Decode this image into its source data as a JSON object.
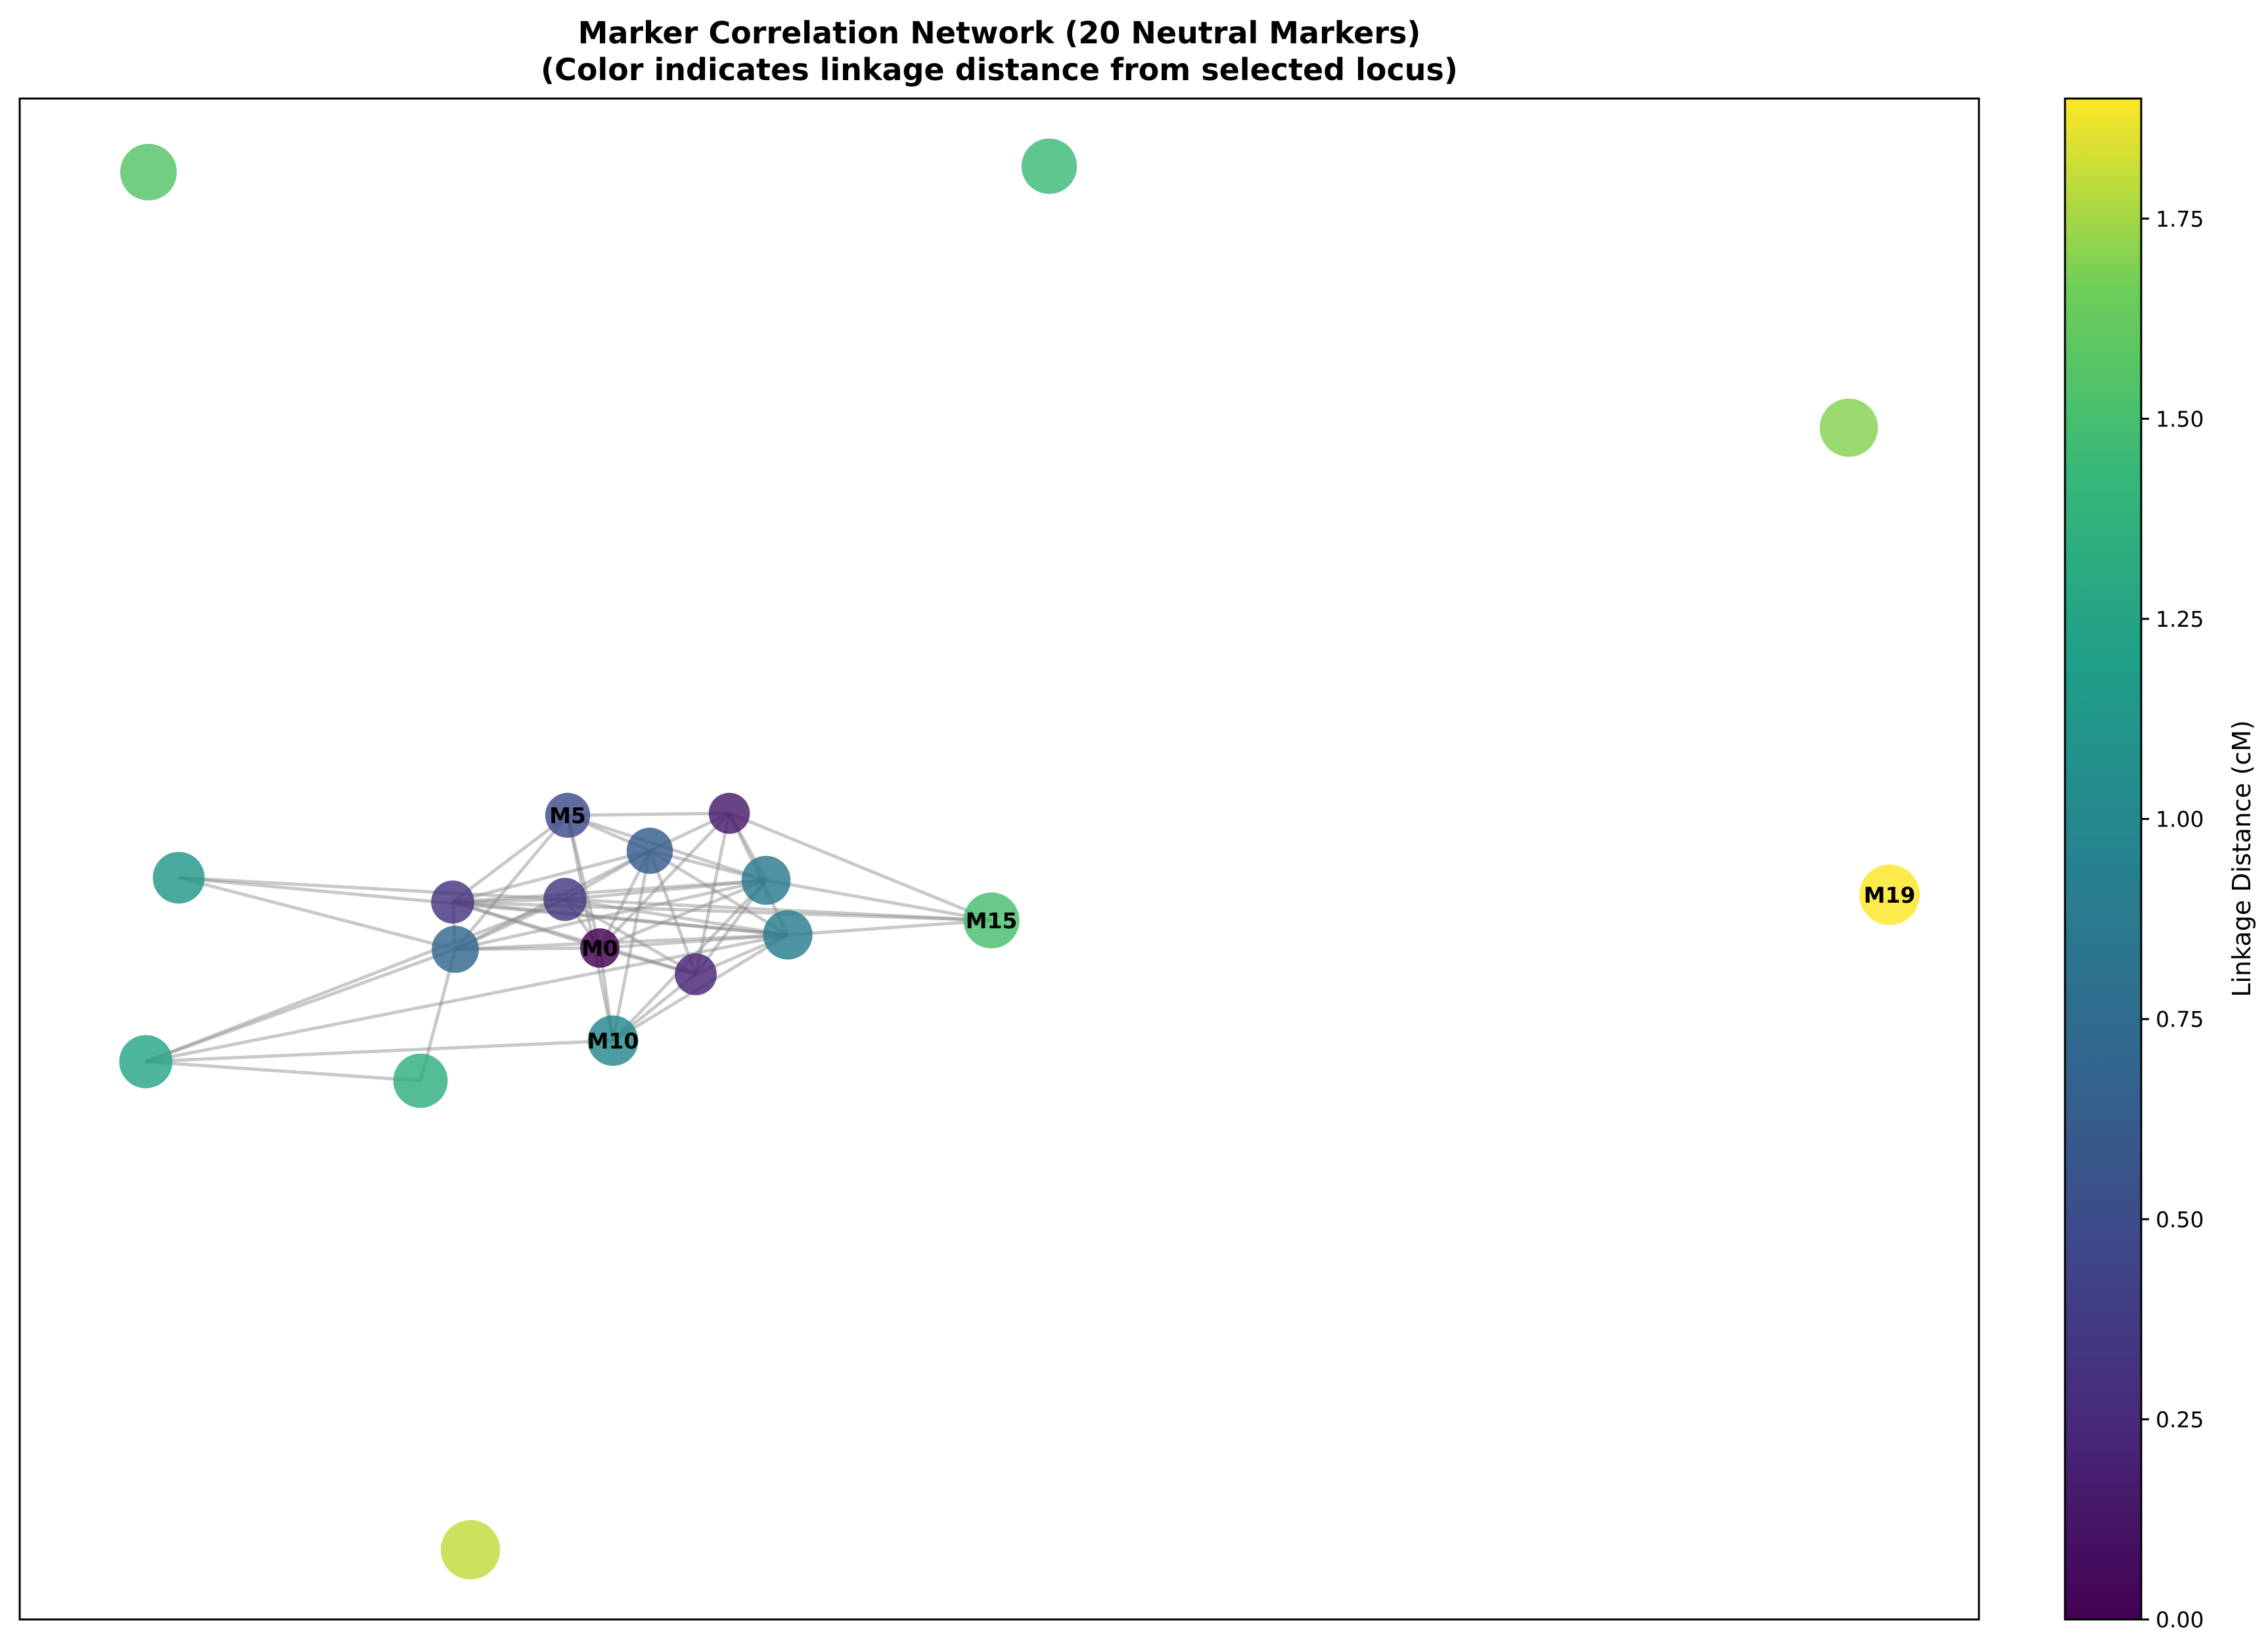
{
  "chart_data": {
    "type": "network",
    "title_line1": "Marker Correlation Network (20 Neutral Markers)",
    "title_line2": "(Color indicates linkage distance from selected locus)",
    "colorbar": {
      "label": "Linkage Distance (cM)",
      "range": [
        0,
        1.9
      ],
      "ticks": [
        "0.00",
        "0.25",
        "0.50",
        "0.75",
        "1.00",
        "1.25",
        "1.50",
        "1.75"
      ],
      "colormap": "viridis"
    },
    "nodes": [
      {
        "id": "M0",
        "label": "M0",
        "distance": 0.0
      },
      {
        "id": "n1",
        "label": "",
        "distance": 0.15
      },
      {
        "id": "n2",
        "label": "",
        "distance": 0.22
      },
      {
        "id": "n3",
        "label": "",
        "distance": 0.33
      },
      {
        "id": "n4",
        "label": "",
        "distance": 0.35
      },
      {
        "id": "M5",
        "label": "M5",
        "distance": 0.5
      },
      {
        "id": "n6",
        "label": "",
        "distance": 0.62
      },
      {
        "id": "n7",
        "label": "",
        "distance": 0.7
      },
      {
        "id": "n8",
        "label": "",
        "distance": 0.87
      },
      {
        "id": "n9",
        "label": "",
        "distance": 0.9
      },
      {
        "id": "M10",
        "label": "M10",
        "distance": 1.0
      },
      {
        "id": "n11",
        "label": "",
        "distance": 1.12
      },
      {
        "id": "n12",
        "label": "",
        "distance": 1.25
      },
      {
        "id": "n13",
        "label": "",
        "distance": 1.35
      },
      {
        "id": "n14",
        "label": "",
        "distance": 1.45
      },
      {
        "id": "M15",
        "label": "M15",
        "distance": 1.5
      },
      {
        "id": "n16",
        "label": "",
        "distance": 1.55
      },
      {
        "id": "n17",
        "label": "",
        "distance": 1.7
      },
      {
        "id": "n18",
        "label": "",
        "distance": 1.8
      },
      {
        "id": "M19",
        "label": "M19",
        "distance": 1.9
      }
    ],
    "edges": [
      [
        "M0",
        "n1"
      ],
      [
        "M0",
        "n2"
      ],
      [
        "M0",
        "n3"
      ],
      [
        "M0",
        "n4"
      ],
      [
        "M0",
        "M5"
      ],
      [
        "M0",
        "n6"
      ],
      [
        "M0",
        "n7"
      ],
      [
        "M0",
        "n8"
      ],
      [
        "M0",
        "n9"
      ],
      [
        "M0",
        "M10"
      ],
      [
        "n1",
        "n6"
      ],
      [
        "n1",
        "n8"
      ],
      [
        "n1",
        "n9"
      ],
      [
        "n1",
        "n2"
      ],
      [
        "n1",
        "M15"
      ],
      [
        "n1",
        "M5"
      ],
      [
        "n2",
        "n3"
      ],
      [
        "n2",
        "n6"
      ],
      [
        "n2",
        "n8"
      ],
      [
        "n2",
        "n9"
      ],
      [
        "n2",
        "M10"
      ],
      [
        "n2",
        "n4"
      ],
      [
        "n3",
        "M5"
      ],
      [
        "n3",
        "n6"
      ],
      [
        "n3",
        "n7"
      ],
      [
        "n3",
        "n8"
      ],
      [
        "n3",
        "n4"
      ],
      [
        "n3",
        "n9"
      ],
      [
        "n4",
        "n6"
      ],
      [
        "n4",
        "n7"
      ],
      [
        "n4",
        "n8"
      ],
      [
        "n4",
        "n9"
      ],
      [
        "n4",
        "M15"
      ],
      [
        "n4",
        "n11"
      ],
      [
        "n4",
        "n12"
      ],
      [
        "M5",
        "n6"
      ],
      [
        "M5",
        "n7"
      ],
      [
        "M5",
        "n8"
      ],
      [
        "M5",
        "M10"
      ],
      [
        "n6",
        "n7"
      ],
      [
        "n6",
        "n8"
      ],
      [
        "n6",
        "n9"
      ],
      [
        "n6",
        "M10"
      ],
      [
        "n7",
        "n8"
      ],
      [
        "n7",
        "n9"
      ],
      [
        "n7",
        "n11"
      ],
      [
        "n7",
        "n13"
      ],
      [
        "n7",
        "n12"
      ],
      [
        "n8",
        "M10"
      ],
      [
        "n8",
        "M15"
      ],
      [
        "n9",
        "M10"
      ],
      [
        "n9",
        "M15"
      ],
      [
        "n9",
        "n12"
      ],
      [
        "M10",
        "n12"
      ],
      [
        "n12",
        "n13"
      ],
      [
        "M15",
        "n3"
      ],
      [
        "n11",
        "n9"
      ]
    ]
  }
}
